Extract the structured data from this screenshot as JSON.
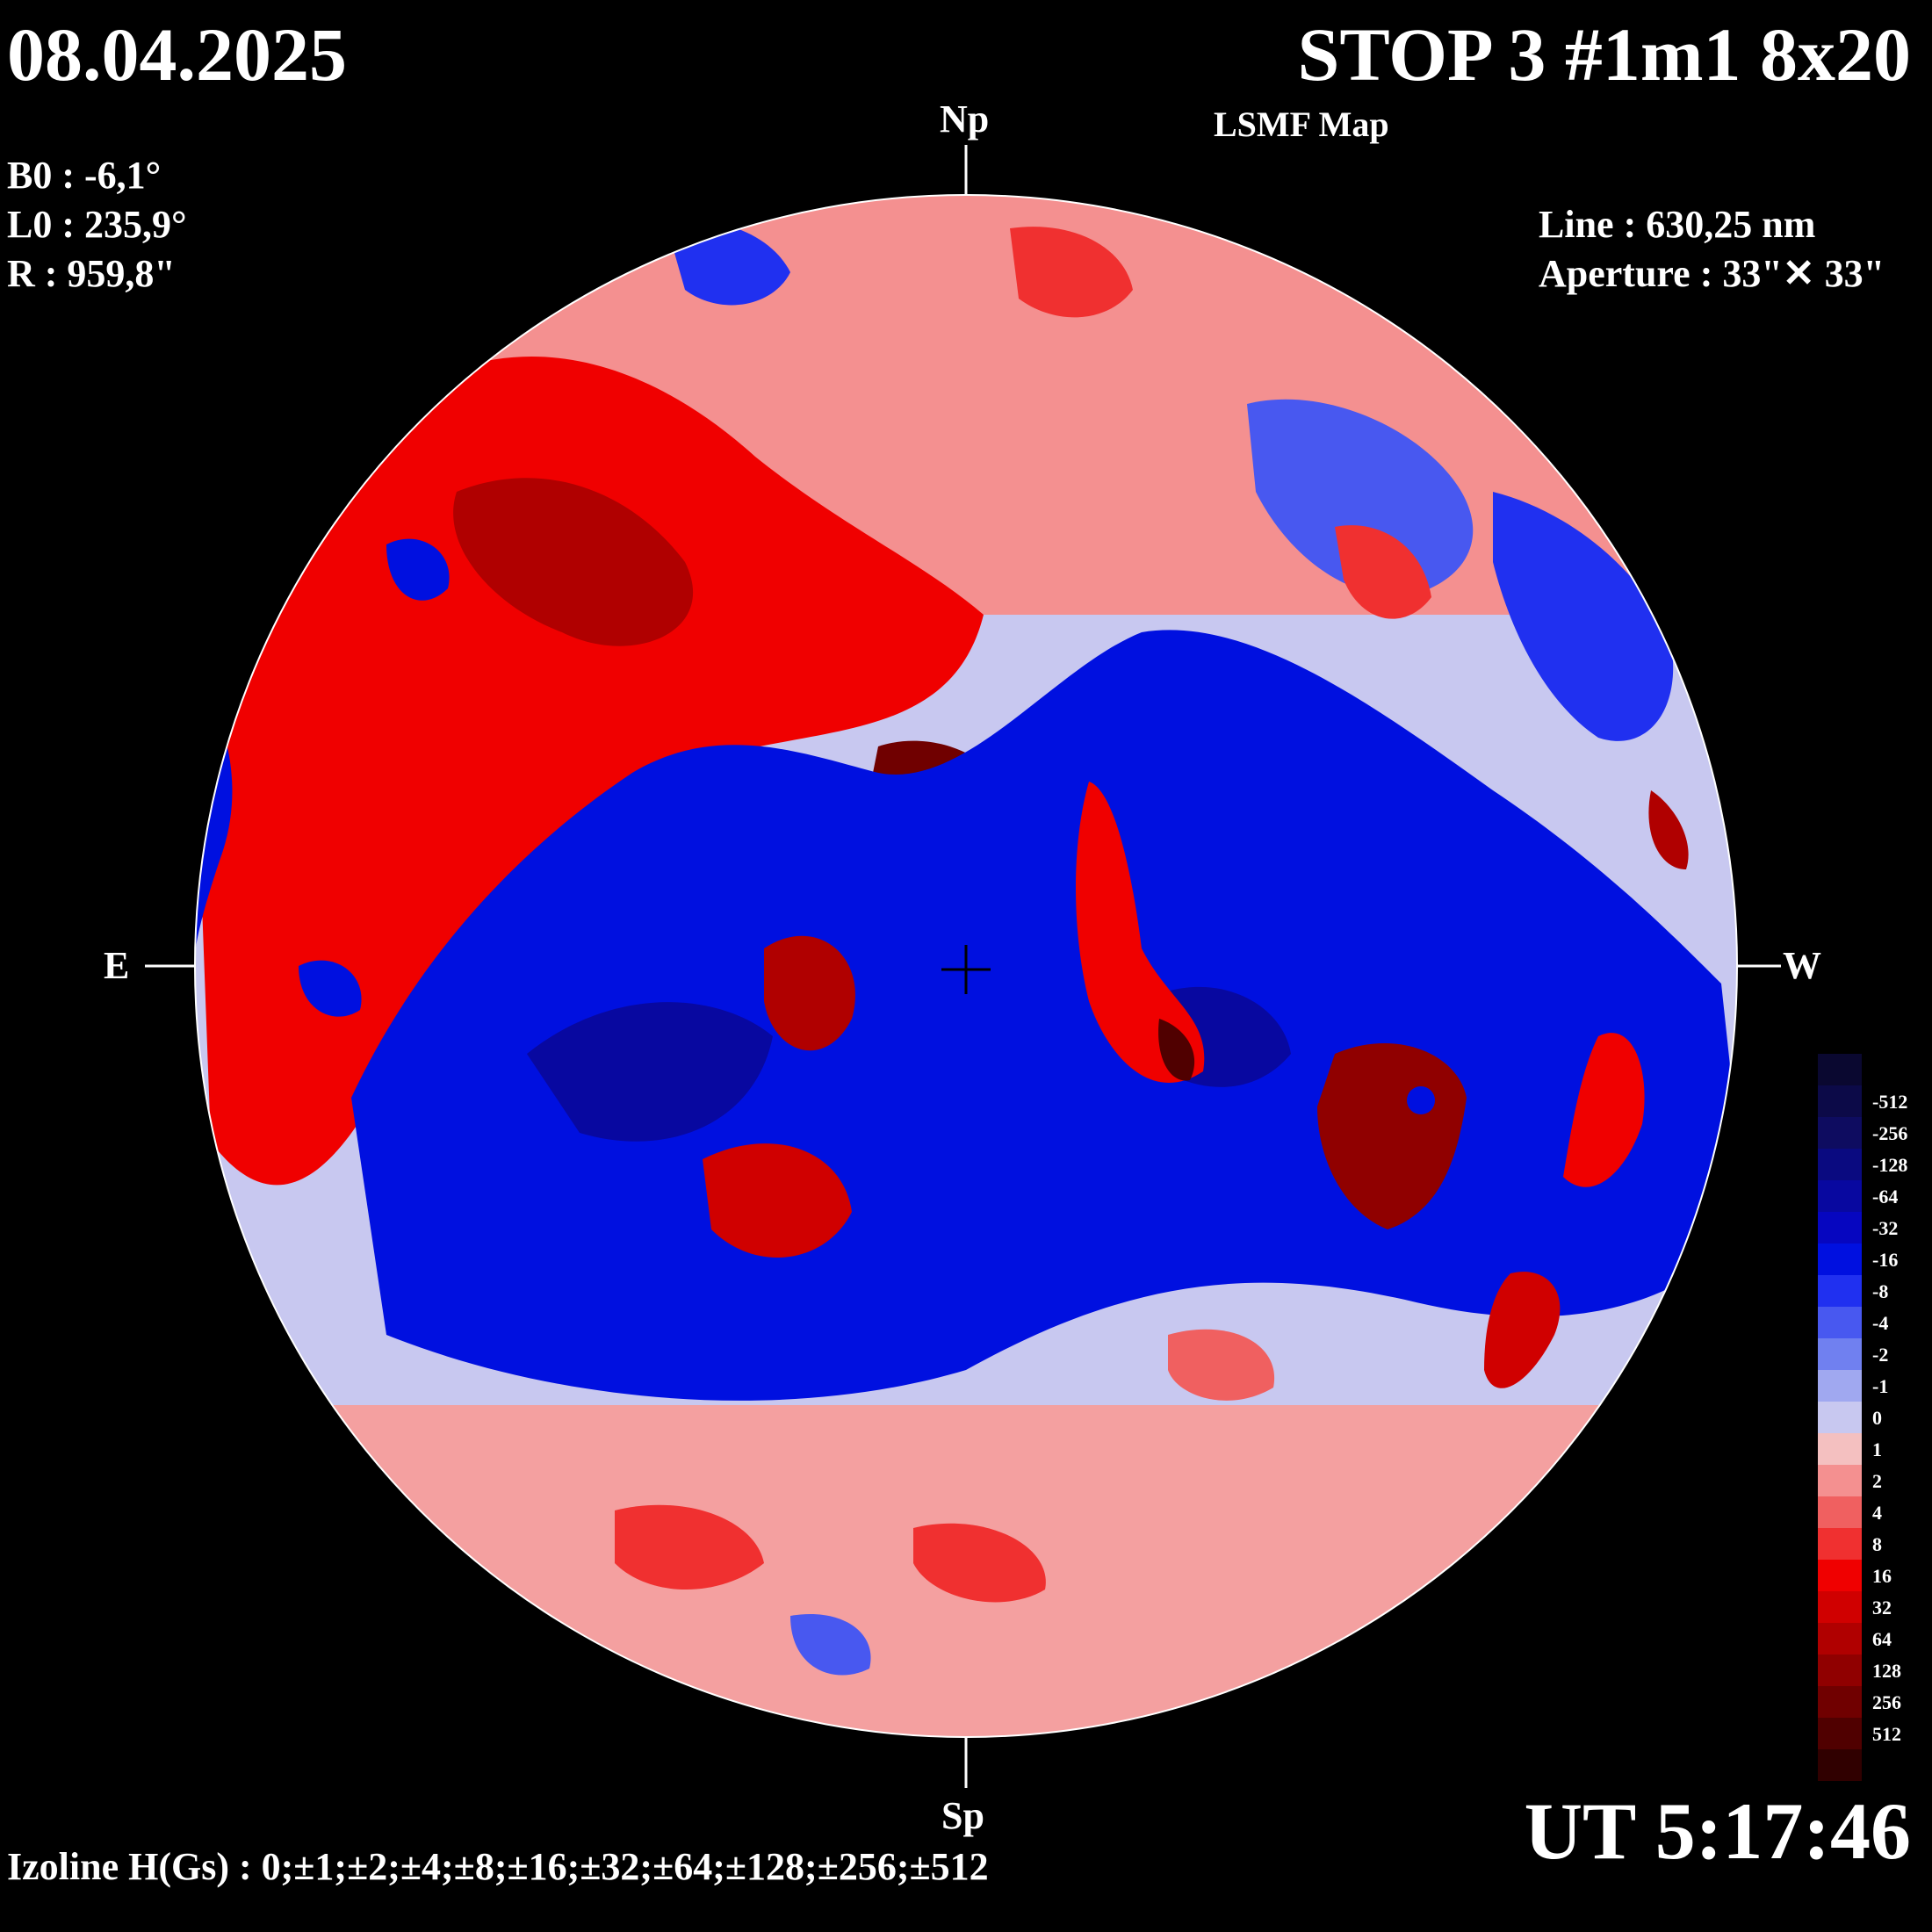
{
  "header": {
    "date": "08.04.2025",
    "title": "STOP 3 #1m1 8x20",
    "subtitle": "LSMF  Map"
  },
  "params": {
    "b0": "B0 : -6,1°",
    "l0": "L0 : 235,9°",
    "r": "R  : 959,8\""
  },
  "observation": {
    "line": "Line :  630,25 nm",
    "aperture": "Aperture : 33\"✕ 33\""
  },
  "directions": {
    "north": "Np",
    "south": "Sp",
    "east": "E",
    "west": "W"
  },
  "time": "UT 5:17:46",
  "izoline": "Izoline H(Gs) : 0;±1;±2;±4;±8;±16;±32;±64;±128;±256;±512",
  "colors": {
    "positive": "#e00000",
    "negative": "#0010e0",
    "neutral_pos": "#f4c0c0",
    "neutral_neg": "#c8c8f0"
  },
  "legend": {
    "levels": [
      {
        "label": "",
        "color": "#0a0830"
      },
      {
        "label": "-512",
        "color": "#0c0a48"
      },
      {
        "label": "-256",
        "color": "#0e0c60"
      },
      {
        "label": "-128",
        "color": "#0a0a80"
      },
      {
        "label": "-64",
        "color": "#0808a0"
      },
      {
        "label": "-32",
        "color": "#0606c0"
      },
      {
        "label": "-16",
        "color": "#0010e0"
      },
      {
        "label": "-8",
        "color": "#2030f0"
      },
      {
        "label": "-4",
        "color": "#4858f0"
      },
      {
        "label": "-2",
        "color": "#7080f0"
      },
      {
        "label": "-1",
        "color": "#a0a8f0"
      },
      {
        "label": "0",
        "color": "#c8c8f0"
      },
      {
        "label": "1",
        "color": "#f4c0c0"
      },
      {
        "label": "2",
        "color": "#f49090"
      },
      {
        "label": "4",
        "color": "#f06060"
      },
      {
        "label": "8",
        "color": "#f03030"
      },
      {
        "label": "16",
        "color": "#f00000"
      },
      {
        "label": "32",
        "color": "#d00000"
      },
      {
        "label": "64",
        "color": "#b00000"
      },
      {
        "label": "128",
        "color": "#900000"
      },
      {
        "label": "256",
        "color": "#700000"
      },
      {
        "label": "512",
        "color": "#500000"
      },
      {
        "label": "",
        "color": "#300000"
      }
    ]
  }
}
